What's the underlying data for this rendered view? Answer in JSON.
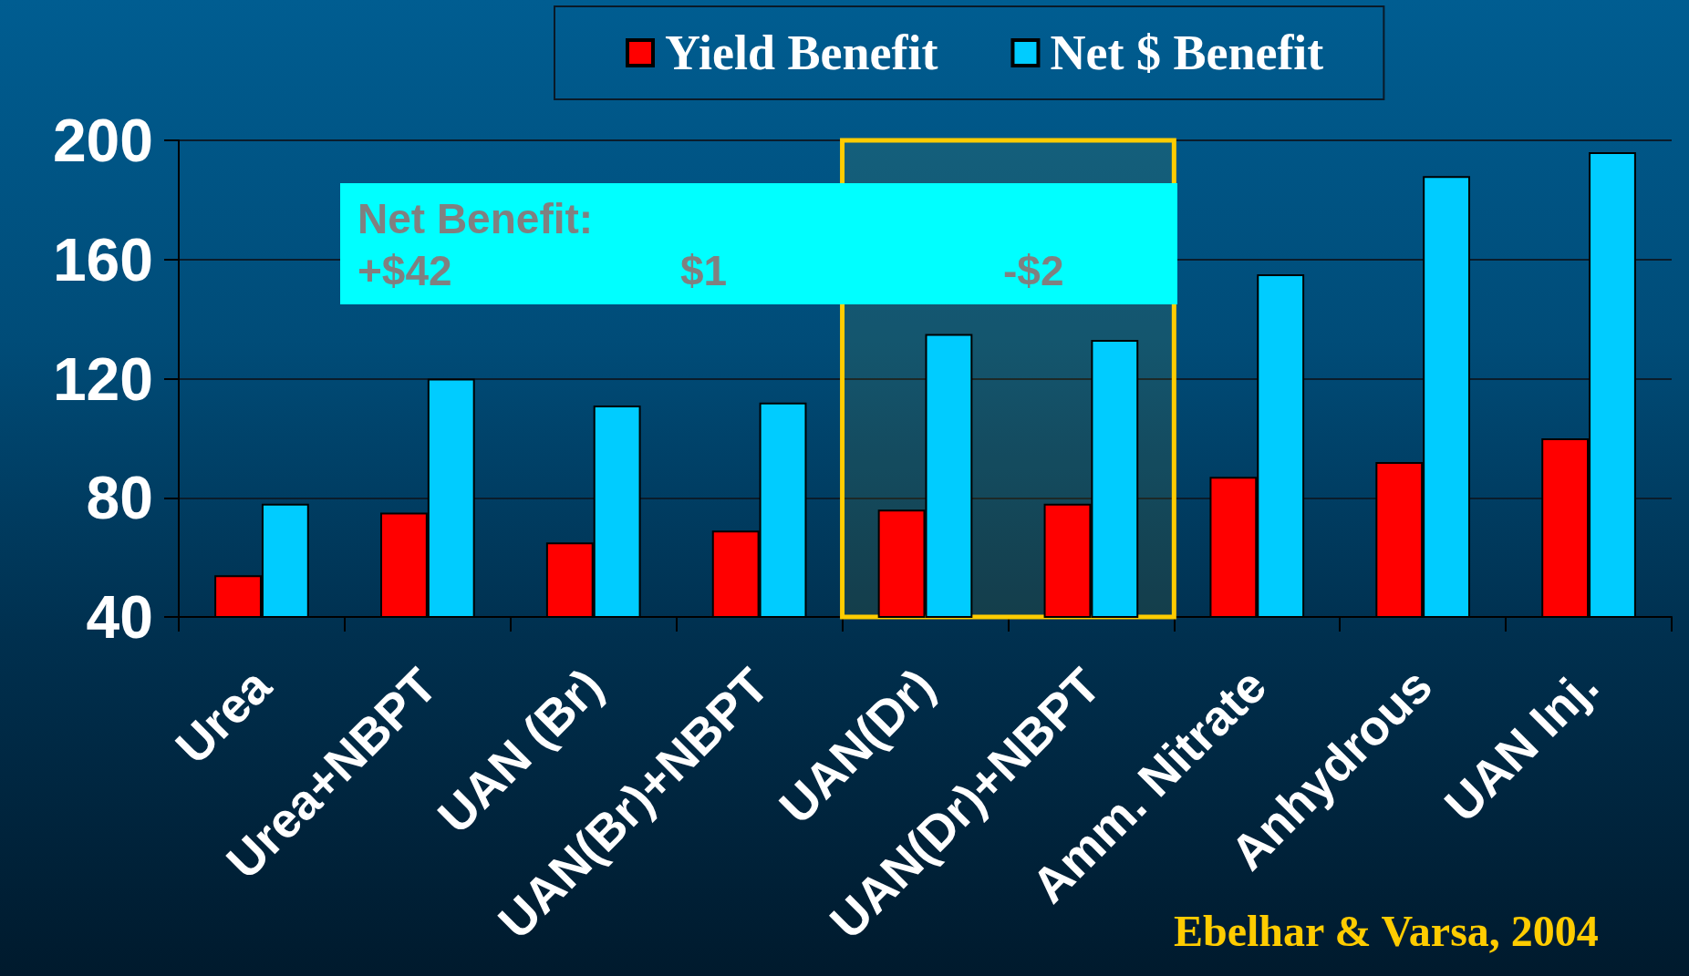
{
  "chart_data": {
    "type": "bar",
    "categories": [
      "Urea",
      "Urea+NBPT",
      "UAN (Br)",
      "UAN(Br)+NBPT",
      "UAN(Dr)",
      "UAN(Dr)+NBPT",
      "Amm. Nitrate",
      "Anhydrous",
      "UAN Inj."
    ],
    "series": [
      {
        "name": "Yield Benefit",
        "color": "#ff0000",
        "values": [
          54,
          75,
          65,
          69,
          76,
          78,
          87,
          92,
          100
        ]
      },
      {
        "name": "Net $ Benefit",
        "color": "#00ccff",
        "values": [
          78,
          120,
          111,
          112,
          135,
          133,
          155,
          188,
          196
        ]
      }
    ],
    "ylim": [
      40,
      200
    ],
    "yticks": [
      40,
      80,
      120,
      160,
      200
    ],
    "grid": "y",
    "legend": "top",
    "bands": [
      {
        "axis": "x",
        "from": "UAN(Dr)",
        "to": "UAN(Dr)+NBPT",
        "color": "#ffcc00"
      }
    ],
    "annotations": [
      "Net Benefit:",
      "+$42",
      "$1",
      "-$2",
      "Ebelhar & Varsa, 2004"
    ]
  }
}
